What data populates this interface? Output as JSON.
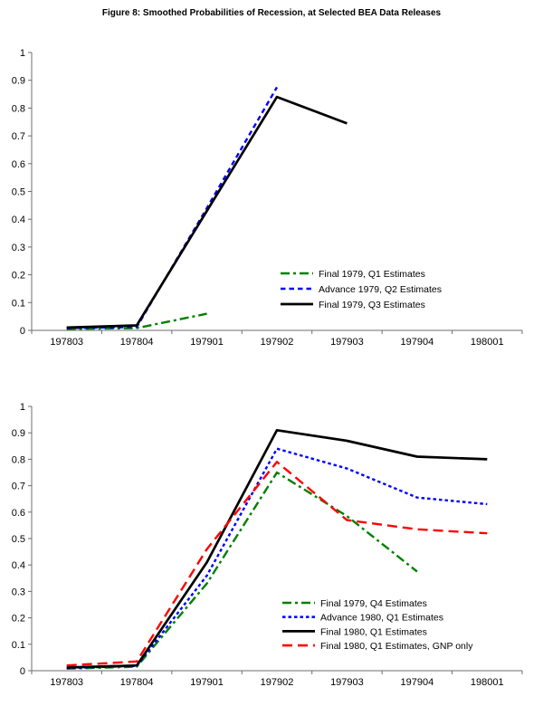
{
  "title": "Figure 8: Smoothed Probabilities of Recession, at Selected BEA Data Releases",
  "axis_color": "#6e6e6e",
  "text_color": "#000000",
  "chart_data": [
    {
      "type": "line",
      "title": "",
      "categories": [
        "197803",
        "197804",
        "197901",
        "197902",
        "197903",
        "197904",
        "198001"
      ],
      "ylim": [
        0,
        1
      ],
      "ytick_labels": [
        "0",
        "0.1",
        "0.2",
        "0.3",
        "0.4",
        "0.5",
        "0.6",
        "0.7",
        "0.8",
        "0.9",
        "1"
      ],
      "grid": false,
      "legend_position": "inside-right",
      "series": [
        {
          "name": "Final 1979, Q1 Estimates",
          "color": "#008000",
          "style": "dash-dot",
          "values": [
            0.005,
            0.008,
            0.06,
            null,
            null,
            null,
            null
          ]
        },
        {
          "name": "Advance 1979, Q2 Estimates",
          "color": "#0000ff",
          "style": "dashed",
          "values": [
            0.008,
            0.012,
            0.44,
            0.875,
            null,
            null,
            null
          ]
        },
        {
          "name": "Final 1979, Q3 Estimates",
          "color": "#000000",
          "style": "solid",
          "values": [
            0.01,
            0.018,
            0.43,
            0.84,
            0.745,
            null,
            null
          ]
        }
      ]
    },
    {
      "type": "line",
      "title": "",
      "categories": [
        "197803",
        "197804",
        "197901",
        "197902",
        "197903",
        "197904",
        "198001"
      ],
      "ylim": [
        0,
        1
      ],
      "ytick_labels": [
        "0",
        "0.1",
        "0.2",
        "0.3",
        "0.4",
        "0.5",
        "0.6",
        "0.7",
        "0.8",
        "0.9",
        "1"
      ],
      "grid": false,
      "legend_position": "inside-right",
      "series": [
        {
          "name": "Final 1979, Q4 Estimates",
          "color": "#008000",
          "style": "dash-dot",
          "values": [
            0.008,
            0.015,
            0.33,
            0.75,
            0.585,
            0.375,
            null
          ]
        },
        {
          "name": "Advance 1980, Q1 Estimates",
          "color": "#0000ff",
          "style": "dotted",
          "values": [
            0.01,
            0.018,
            0.36,
            0.84,
            0.765,
            0.655,
            0.63
          ]
        },
        {
          "name": "Final 1980, Q1 Estimates",
          "color": "#000000",
          "style": "solid",
          "values": [
            0.012,
            0.02,
            0.41,
            0.91,
            0.87,
            0.81,
            0.8
          ]
        },
        {
          "name": "Final 1980, Q1 Estimates, GNP only",
          "color": "#ff0000",
          "style": "long-dash",
          "values": [
            0.02,
            0.035,
            0.46,
            0.79,
            0.57,
            0.535,
            0.52
          ]
        }
      ]
    }
  ]
}
